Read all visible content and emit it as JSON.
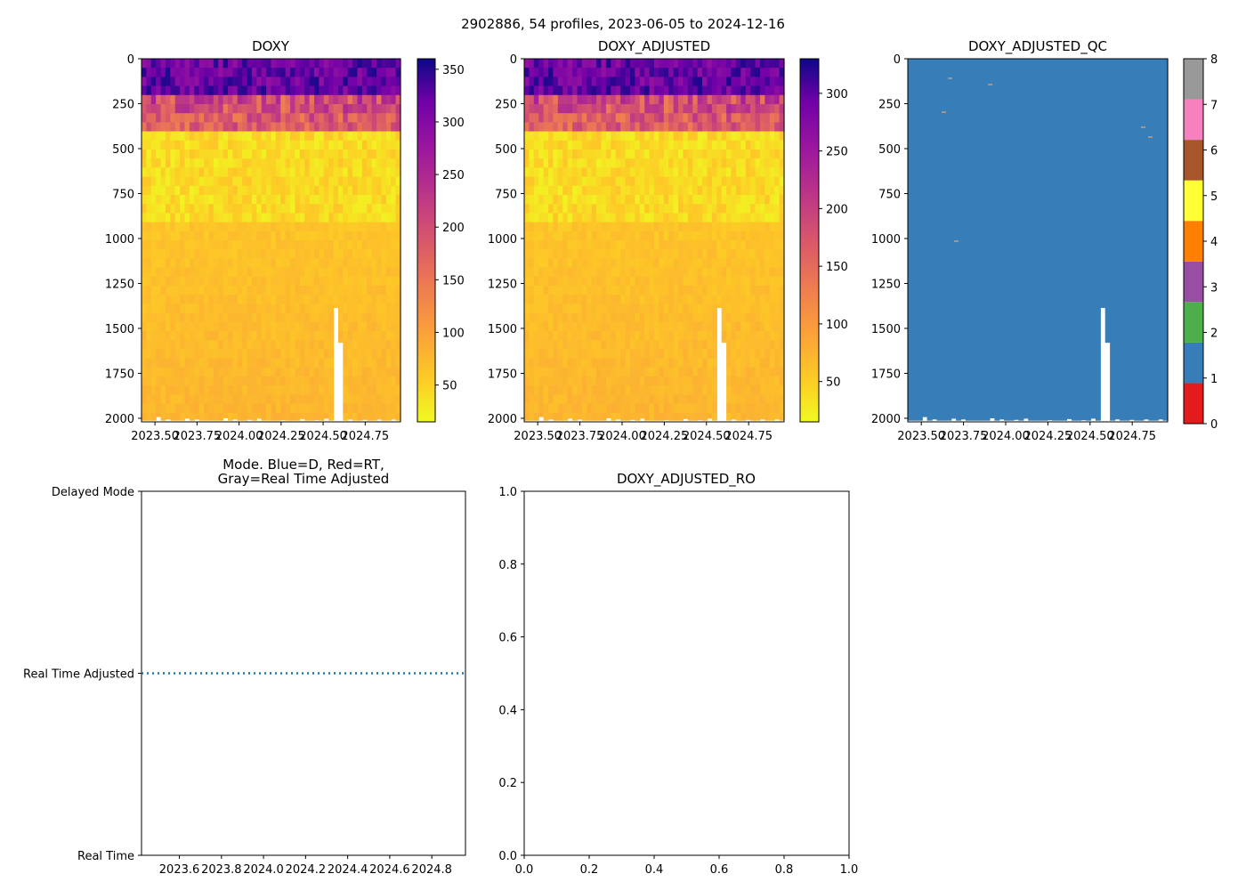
{
  "suptitle": "2902886, 54 profiles, 2023-06-05 to 2024-12-16",
  "colors": {
    "axis": "#000000",
    "mode_line": "#1f77b4",
    "qc_field": "#377eb8",
    "plasma_low": "#f0f921",
    "plasma_high": "#0d0887"
  },
  "chart_data": [
    {
      "id": "doxy",
      "type": "heatmap",
      "title": "DOXY",
      "x_ticks": [
        "2023.50",
        "2023.75",
        "2024.00",
        "2024.25",
        "2024.50",
        "2024.75"
      ],
      "x_tick_values": [
        2023.5,
        2023.75,
        2024.0,
        2024.25,
        2024.5,
        2024.75
      ],
      "xlim": [
        2023.42,
        2024.96
      ],
      "y_ticks": [
        "0",
        "250",
        "500",
        "750",
        "1000",
        "1250",
        "1500",
        "1750",
        "2000"
      ],
      "y_tick_values": [
        0,
        250,
        500,
        750,
        1000,
        1250,
        1500,
        1750,
        2000
      ],
      "ylim": [
        2020,
        0
      ],
      "colormap": "plasma_r",
      "colorbar_range": [
        15,
        360
      ],
      "colorbar_ticks": [
        "50",
        "100",
        "150",
        "200",
        "250",
        "300",
        "350"
      ],
      "colorbar_tick_values": [
        50,
        100,
        150,
        200,
        250,
        300,
        350
      ]
    },
    {
      "id": "doxy_adjusted",
      "type": "heatmap",
      "title": "DOXY_ADJUSTED",
      "x_ticks": [
        "2023.50",
        "2023.75",
        "2024.00",
        "2024.25",
        "2024.50",
        "2024.75"
      ],
      "x_tick_values": [
        2023.5,
        2023.75,
        2024.0,
        2024.25,
        2024.5,
        2024.75
      ],
      "xlim": [
        2023.42,
        2024.96
      ],
      "y_ticks": [
        "0",
        "250",
        "500",
        "750",
        "1000",
        "1250",
        "1500",
        "1750",
        "2000"
      ],
      "y_tick_values": [
        0,
        250,
        500,
        750,
        1000,
        1250,
        1500,
        1750,
        2000
      ],
      "ylim": [
        2020,
        0
      ],
      "colormap": "plasma_r",
      "colorbar_range": [
        15,
        330
      ],
      "colorbar_ticks": [
        "50",
        "100",
        "150",
        "200",
        "250",
        "300"
      ],
      "colorbar_tick_values": [
        50,
        100,
        150,
        200,
        250,
        300
      ]
    },
    {
      "id": "doxy_adjusted_qc",
      "type": "heatmap",
      "title": "DOXY_ADJUSTED_QC",
      "x_ticks": [
        "2023.50",
        "2023.75",
        "2024.00",
        "2024.25",
        "2024.50",
        "2024.75"
      ],
      "x_tick_values": [
        2023.5,
        2023.75,
        2024.0,
        2024.25,
        2024.5,
        2024.75
      ],
      "xlim": [
        2023.42,
        2024.96
      ],
      "y_ticks": [
        "0",
        "250",
        "500",
        "750",
        "1000",
        "1250",
        "1500",
        "1750",
        "2000"
      ],
      "y_tick_values": [
        0,
        250,
        500,
        750,
        1000,
        1250,
        1500,
        1750,
        2000
      ],
      "ylim": [
        2020,
        0
      ],
      "dominant_flag": 1,
      "colorbar_range": [
        0,
        8
      ],
      "colorbar_ticks": [
        "0",
        "1",
        "2",
        "3",
        "4",
        "5",
        "6",
        "7",
        "8"
      ],
      "colorbar_tick_values": [
        0,
        1,
        2,
        3,
        4,
        5,
        6,
        7,
        8
      ],
      "qc_colors": [
        "#e41a1c",
        "#377eb8",
        "#4daf4a",
        "#984ea3",
        "#ff7f00",
        "#ffff33",
        "#a65628",
        "#f781bf",
        "#999999"
      ]
    },
    {
      "id": "mode",
      "type": "line",
      "title_line1": "Mode. Blue=D, Red=RT,",
      "title_line2": "Gray=Real Time Adjusted",
      "y_ticks": [
        "Real Time",
        "Real Time Adjusted",
        "Delayed Mode"
      ],
      "y_tick_values": [
        0,
        1,
        2
      ],
      "ylim": [
        0,
        2
      ],
      "x_ticks": [
        "2023.6",
        "2023.8",
        "2024.0",
        "2024.2",
        "2024.4",
        "2024.6",
        "2024.8"
      ],
      "x_tick_values": [
        2023.6,
        2023.8,
        2024.0,
        2024.2,
        2024.4,
        2024.6,
        2024.8
      ],
      "xlim": [
        2023.42,
        2024.96
      ],
      "series": [
        {
          "name": "mode",
          "x": [
            2023.42,
            2024.96
          ],
          "y": [
            1,
            1
          ],
          "style": "dotted"
        }
      ]
    },
    {
      "id": "doxy_adjusted_ro",
      "type": "line",
      "title": "DOXY_ADJUSTED_RO",
      "x_ticks": [
        "0.0",
        "0.2",
        "0.4",
        "0.6",
        "0.8",
        "1.0"
      ],
      "x_tick_values": [
        0,
        0.2,
        0.4,
        0.6,
        0.8,
        1.0
      ],
      "xlim": [
        0,
        1
      ],
      "y_ticks": [
        "0.0",
        "0.2",
        "0.4",
        "0.6",
        "0.8",
        "1.0"
      ],
      "y_tick_values": [
        0,
        0.2,
        0.4,
        0.6,
        0.8,
        1.0
      ],
      "ylim": [
        0,
        1
      ],
      "series": []
    }
  ]
}
